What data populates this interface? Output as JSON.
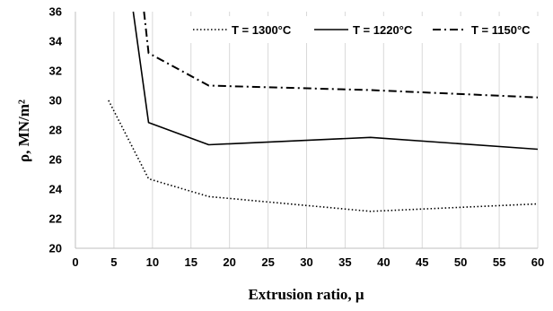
{
  "chart_data": {
    "type": "line",
    "xlabel": "Extrusion ratio, μ",
    "ylabel": "ρ, MN/m²",
    "xlim": [
      0,
      60
    ],
    "ylim": [
      20,
      36
    ],
    "x_ticks": [
      "0",
      "5",
      "10",
      "15",
      "20",
      "25",
      "30",
      "35",
      "40",
      "45",
      "50",
      "55",
      "60"
    ],
    "y_ticks": [
      "20",
      "22",
      "24",
      "26",
      "28",
      "30",
      "32",
      "34",
      "36"
    ],
    "grid": "vertical",
    "legend_position": "top-right",
    "series": [
      {
        "name": "T = 1300°C",
        "style": "dotted",
        "x": [
          4.3,
          9.5,
          17.3,
          38.3,
          60
        ],
        "y": [
          30.0,
          24.7,
          23.5,
          22.5,
          23.0
        ]
      },
      {
        "name": "T = 1220°C",
        "style": "solid",
        "x": [
          7.5,
          9.5,
          17.3,
          38.3,
          60
        ],
        "y": [
          36.0,
          28.5,
          27.0,
          27.5,
          26.7
        ]
      },
      {
        "name": "T = 1150°C",
        "style": "dashdot",
        "x": [
          8.9,
          9.5,
          17.3,
          38.3,
          60
        ],
        "y": [
          36.0,
          33.2,
          31.0,
          30.7,
          30.2
        ]
      }
    ]
  }
}
